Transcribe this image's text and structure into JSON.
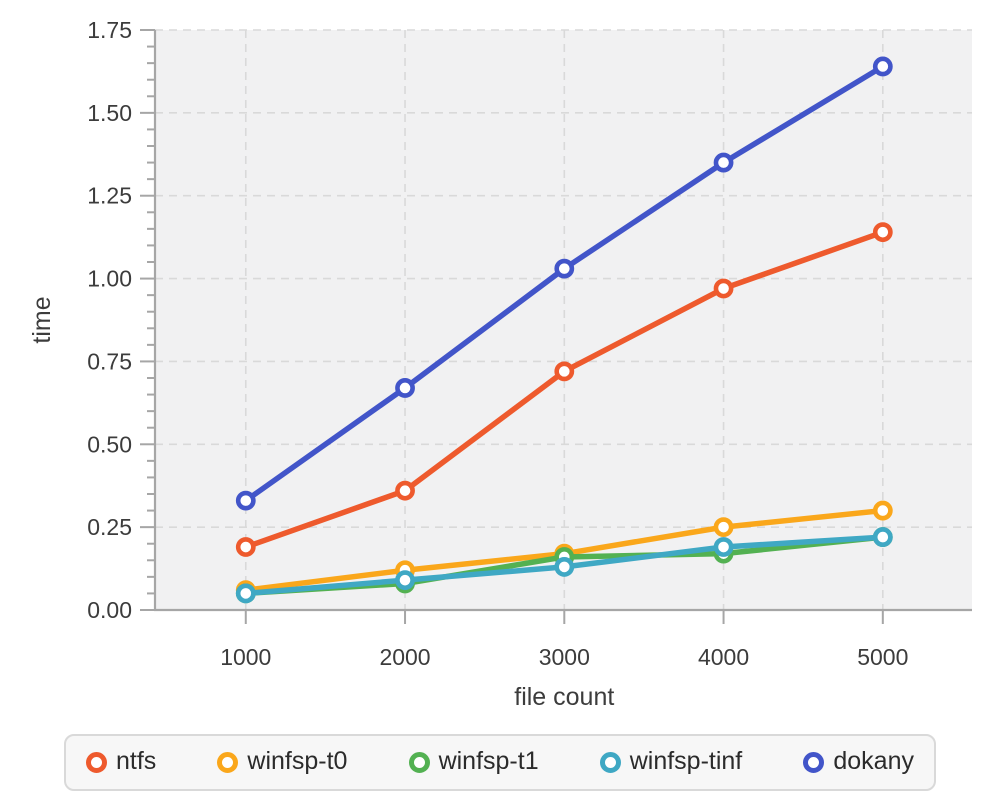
{
  "chart_data": {
    "type": "line",
    "title": "",
    "xlabel": "file count",
    "ylabel": "time",
    "x": [
      1000,
      2000,
      3000,
      4000,
      5000
    ],
    "x_tick_labels": [
      "1000",
      "2000",
      "3000",
      "4000",
      "5000"
    ],
    "y_ticks": [
      0.0,
      0.25,
      0.5,
      0.75,
      1.0,
      1.25,
      1.5,
      1.75
    ],
    "y_tick_labels": [
      "0.00",
      "0.25",
      "0.50",
      "0.75",
      "1.00",
      "1.25",
      "1.50",
      "1.75"
    ],
    "xlim": [
      430,
      5560
    ],
    "ylim": [
      0,
      1.75
    ],
    "y_minor_tick_step": 0.05,
    "grid": {
      "show": true,
      "style": "dashed",
      "which": "major"
    },
    "legend_position": "bottom",
    "marker": "open-circle",
    "series": [
      {
        "name": "ntfs",
        "color": "#ee5a2d",
        "values": [
          0.19,
          0.36,
          0.72,
          0.97,
          1.14
        ]
      },
      {
        "name": "winfsp-t0",
        "color": "#faa71b",
        "values": [
          0.06,
          0.12,
          0.17,
          0.25,
          0.3
        ]
      },
      {
        "name": "winfsp-t1",
        "color": "#53b152",
        "values": [
          0.05,
          0.08,
          0.16,
          0.17,
          0.22
        ]
      },
      {
        "name": "winfsp-tinf",
        "color": "#3fa8c4",
        "values": [
          0.05,
          0.09,
          0.13,
          0.19,
          0.22
        ]
      },
      {
        "name": "dokany",
        "color": "#4255c9",
        "values": [
          0.33,
          0.67,
          1.03,
          1.35,
          1.64
        ]
      }
    ]
  },
  "style": {
    "plot_background": "#f1f1f2",
    "gridline_color": "#d9d9d9",
    "axis_color": "#a6a6a6",
    "tick_label_color": "#3c3c3c",
    "axis_label_color": "#3c3c3c",
    "marker_fill": "#ffffff"
  }
}
